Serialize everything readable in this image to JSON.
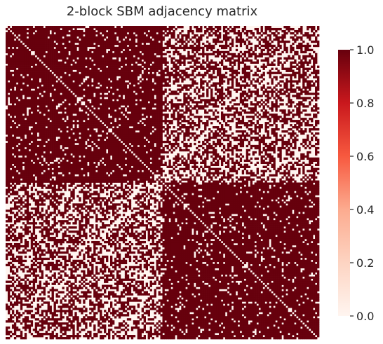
{
  "chart_data": {
    "type": "heatmap",
    "title": "2-block SBM adjacency matrix",
    "xlabel": "",
    "ylabel": "",
    "n_nodes": 150,
    "blocks": [
      {
        "start": 0,
        "end": 74
      },
      {
        "start": 75,
        "end": 149
      }
    ],
    "edge_probability": {
      "within_block": 0.9,
      "between_block": 0.5
    },
    "diagonal_value": 0,
    "value_range": [
      0,
      1
    ],
    "grid": false,
    "x_tick_labels_visible": false,
    "y_tick_labels_visible": false,
    "colorbar": {
      "placement": "right",
      "min": 0,
      "max": 1,
      "ticks": [
        0,
        0.2,
        0.4,
        0.6,
        0.8,
        1
      ],
      "tick_labels": [
        "0.0",
        "0.2",
        "0.4",
        "0.6",
        "0.8",
        "1.0"
      ]
    },
    "colormap": {
      "name": "Reds",
      "low_color": "#fff5f0",
      "high_color": "#67000d",
      "stops": [
        "#fff5f0",
        "#fdd4c2",
        "#fcab8f",
        "#f7593f",
        "#c9181d",
        "#67000d"
      ]
    }
  }
}
